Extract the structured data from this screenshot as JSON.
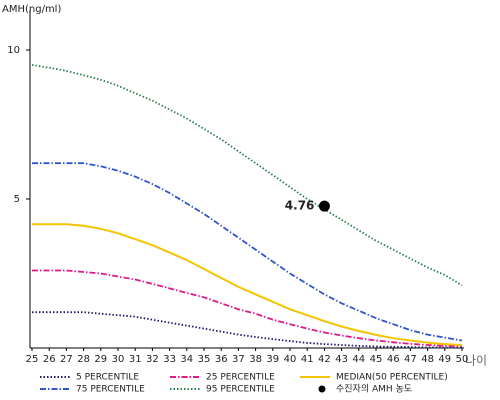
{
  "chart_data": {
    "type": "line",
    "y_label": "AMH(ng/ml)",
    "x_label": "나이",
    "x": [
      25,
      26,
      27,
      28,
      29,
      30,
      31,
      32,
      33,
      34,
      35,
      36,
      37,
      38,
      39,
      40,
      41,
      42,
      43,
      44,
      45,
      46,
      47,
      48,
      49,
      50
    ],
    "xlim": [
      25,
      50
    ],
    "xticks": [
      25,
      26,
      27,
      28,
      29,
      30,
      31,
      32,
      33,
      34,
      35,
      36,
      37,
      38,
      39,
      40,
      41,
      42,
      43,
      44,
      45,
      46,
      47,
      48,
      49,
      50
    ],
    "ylim": [
      0,
      11.2
    ],
    "yticks": [
      5,
      10
    ],
    "series": [
      {
        "name": "5 PERCENTILE",
        "color": "#1a1a6e",
        "style": "dotted",
        "values": [
          1.2,
          1.2,
          1.2,
          1.2,
          1.15,
          1.1,
          1.05,
          0.95,
          0.85,
          0.75,
          0.65,
          0.55,
          0.45,
          0.37,
          0.3,
          0.23,
          0.17,
          0.13,
          0.1,
          0.07,
          0.05,
          0.04,
          0.03,
          0.02,
          0.015,
          0.01
        ]
      },
      {
        "name": "25 PERCENTILE",
        "color": "#e0198a",
        "style": "dashdot",
        "values": [
          2.6,
          2.6,
          2.6,
          2.55,
          2.5,
          2.4,
          2.3,
          2.15,
          2.0,
          1.85,
          1.7,
          1.5,
          1.3,
          1.15,
          0.95,
          0.8,
          0.65,
          0.52,
          0.42,
          0.33,
          0.25,
          0.19,
          0.14,
          0.1,
          0.07,
          0.05
        ]
      },
      {
        "name": "MEDIAN(50 PERCENTILE)",
        "color": "#f5c400",
        "style": "solid",
        "values": [
          4.15,
          4.15,
          4.15,
          4.1,
          4.0,
          3.85,
          3.65,
          3.45,
          3.2,
          2.95,
          2.65,
          2.35,
          2.05,
          1.8,
          1.55,
          1.3,
          1.1,
          0.9,
          0.72,
          0.57,
          0.44,
          0.33,
          0.25,
          0.18,
          0.13,
          0.1
        ]
      },
      {
        "name": "75 PERCENTILE",
        "color": "#3355cc",
        "style": "dashdot",
        "values": [
          6.2,
          6.2,
          6.2,
          6.2,
          6.1,
          5.95,
          5.75,
          5.5,
          5.2,
          4.85,
          4.5,
          4.1,
          3.7,
          3.3,
          2.9,
          2.5,
          2.15,
          1.8,
          1.5,
          1.25,
          1.0,
          0.8,
          0.6,
          0.45,
          0.35,
          0.25
        ]
      },
      {
        "name": "95 PERCENTILE",
        "color": "#2e7d4f",
        "style": "dotted",
        "values": [
          9.5,
          9.4,
          9.3,
          9.15,
          9.0,
          8.8,
          8.55,
          8.3,
          8.0,
          7.7,
          7.35,
          7.0,
          6.6,
          6.2,
          5.8,
          5.4,
          5.0,
          4.65,
          4.3,
          3.95,
          3.6,
          3.3,
          3.0,
          2.7,
          2.45,
          2.1
        ]
      },
      {
        "name": "수진자의 AMH 농도",
        "color": "#000000",
        "style": "marker",
        "x": [
          42
        ],
        "values": [
          4.76
        ]
      }
    ]
  }
}
